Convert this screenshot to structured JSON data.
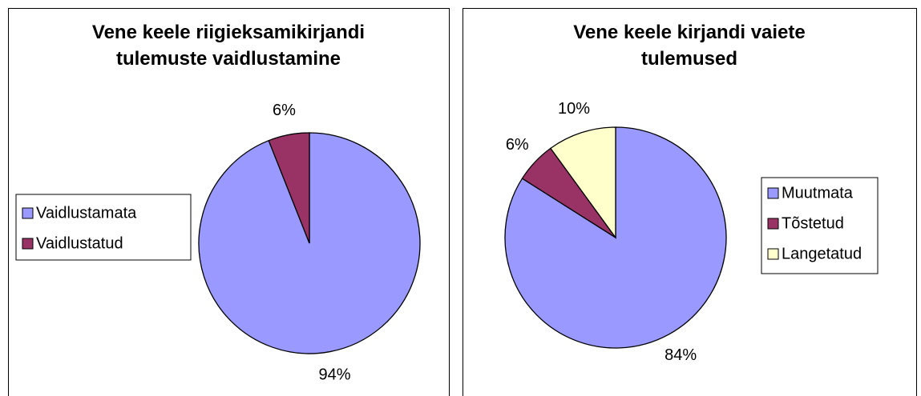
{
  "chart_data": [
    {
      "type": "pie",
      "title": "Vene keele riigieksamikirjandi tulemuste vaidlustamine",
      "categories": [
        "Vaidlustamata",
        "Vaidlustatud"
      ],
      "values": [
        94,
        6
      ],
      "value_labels": [
        "94%",
        "6%"
      ],
      "colors": [
        "#9999ff",
        "#993366"
      ],
      "legend": "left"
    },
    {
      "type": "pie",
      "title": "Vene keele kirjandi vaiete tulemused",
      "categories": [
        "Muutmata",
        "Tõstetud",
        "Langetatud"
      ],
      "values": [
        84,
        6,
        10
      ],
      "value_labels": [
        "84%",
        "6%",
        "10%"
      ],
      "colors": [
        "#9999ff",
        "#993366",
        "#ffffcc"
      ],
      "legend": "right"
    }
  ]
}
